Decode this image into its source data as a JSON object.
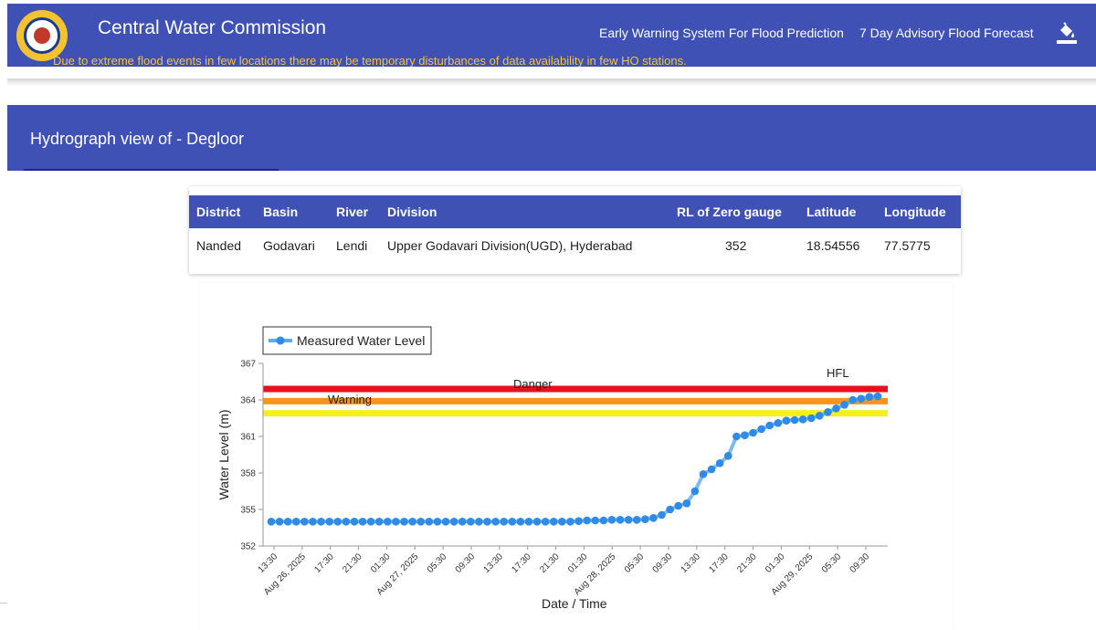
{
  "header": {
    "title": "Central Water Commission",
    "nav": [
      "Early Warning System For Flood Prediction",
      "7 Day Advisory Flood Forecast"
    ],
    "notice": "Due to extreme flood events in few locations there may be temporary disturbances of data availability in few HO stations."
  },
  "page": {
    "title": "Hydrograph view of - Degloor"
  },
  "station_table": {
    "headers": [
      "District",
      "Basin",
      "River",
      "Division",
      "RL of Zero gauge",
      "Latitude",
      "Longitude"
    ],
    "values": [
      "Nanded",
      "Godavari",
      "Lendi",
      "Upper Godavari Division(UGD), Hyderabad",
      "352",
      "18.54556",
      "77.5775"
    ]
  },
  "colors": {
    "primary": "#3f51b5",
    "notice": "#f5c33b",
    "series": "#2e8be6",
    "danger": "#e8101a",
    "warning": "#f7941d",
    "hfl": "#f5f01a"
  },
  "chart_data": {
    "type": "line",
    "legend": {
      "label": "Measured Water Level",
      "position": "top-left"
    },
    "xlabel": "Date / Time",
    "ylabel": "Water Level (m)",
    "ylim": [
      352,
      367
    ],
    "yticks": [
      "352",
      "355",
      "358",
      "361",
      "364",
      "367"
    ],
    "xticks": [
      "13:30",
      "Aug 26, 2025",
      "17:30",
      "21:30",
      "01:30",
      "Aug 27, 2025",
      "05:30",
      "09:30",
      "13:30",
      "17:30",
      "21:30",
      "01:30",
      "Aug 28, 2025",
      "05:30",
      "09:30",
      "13:30",
      "17:30",
      "21:30",
      "01:30",
      "Aug 29, 2025",
      "05:30",
      "09:30"
    ],
    "reference_lines": [
      {
        "name": "Danger",
        "value": 364.9
      },
      {
        "name": "Warning",
        "value": 363.9
      },
      {
        "name": "HFL",
        "value": 362.9
      }
    ],
    "series": [
      {
        "name": "Measured Water Level",
        "values": [
          354.0,
          354.0,
          354.0,
          354.0,
          354.0,
          354.0,
          354.0,
          354.0,
          354.0,
          354.0,
          354.0,
          354.0,
          354.0,
          354.0,
          354.0,
          354.0,
          354.0,
          354.0,
          354.0,
          354.0,
          354.0,
          354.0,
          354.0,
          354.0,
          354.0,
          354.0,
          354.0,
          354.0,
          354.0,
          354.0,
          354.0,
          354.0,
          354.0,
          354.0,
          354.0,
          354.0,
          354.0,
          354.05,
          354.1,
          354.1,
          354.1,
          354.15,
          354.15,
          354.15,
          354.15,
          354.2,
          354.3,
          354.55,
          355.0,
          355.3,
          355.5,
          356.5,
          357.9,
          358.3,
          358.8,
          359.4,
          361.0,
          361.1,
          361.3,
          361.6,
          361.9,
          362.1,
          362.3,
          362.35,
          362.4,
          362.5,
          362.7,
          363.0,
          363.3,
          363.6,
          364.0,
          364.1,
          364.25,
          364.3
        ]
      }
    ]
  }
}
